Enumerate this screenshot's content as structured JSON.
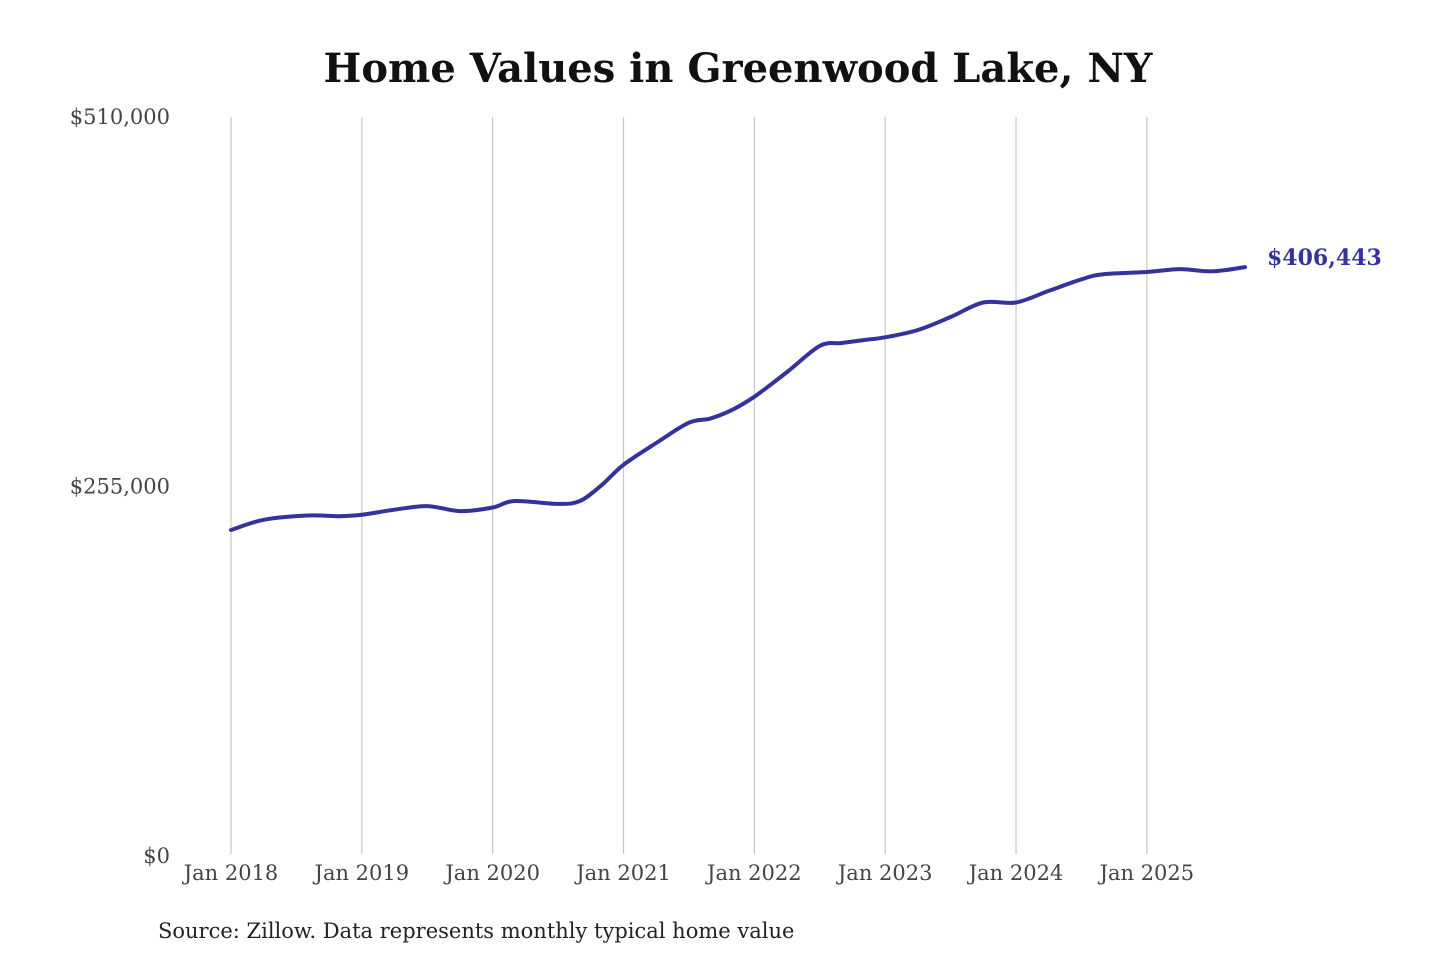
{
  "colors": {
    "series": "#35329b",
    "grid": "#c8c8c8",
    "text": "#444444"
  },
  "chart_data": {
    "type": "line",
    "title": "Home Values in Greenwood Lake, NY",
    "xlabel": "",
    "ylabel": "",
    "grid": "vertical",
    "ylim": [
      0,
      510000
    ],
    "yticks": [
      0,
      255000,
      510000
    ],
    "ytick_labels": [
      "$0",
      "$255,000",
      "$510,000"
    ],
    "xticks": [
      "2018-01",
      "2019-01",
      "2020-01",
      "2021-01",
      "2022-01",
      "2023-01",
      "2024-01",
      "2025-01"
    ],
    "xtick_labels": [
      "Jan 2018",
      "Jan 2019",
      "Jan 2020",
      "Jan 2021",
      "Jan 2022",
      "Jan 2023",
      "Jan 2024",
      "Jan 2025"
    ],
    "xlim": [
      "2018-01",
      "2025-10"
    ],
    "series": [
      {
        "name": "",
        "end_label": "$406,443",
        "points": [
          {
            "x": "2018-01",
            "y": 225000
          },
          {
            "x": "2018-04",
            "y": 232000
          },
          {
            "x": "2018-08",
            "y": 235000
          },
          {
            "x": "2018-11",
            "y": 234500
          },
          {
            "x": "2019-01",
            "y": 235500
          },
          {
            "x": "2019-04",
            "y": 239000
          },
          {
            "x": "2019-07",
            "y": 241500
          },
          {
            "x": "2019-10",
            "y": 238000
          },
          {
            "x": "2020-01",
            "y": 240500
          },
          {
            "x": "2020-03",
            "y": 245000
          },
          {
            "x": "2020-07",
            "y": 243000
          },
          {
            "x": "2020-09",
            "y": 245000
          },
          {
            "x": "2020-11",
            "y": 256000
          },
          {
            "x": "2021-01",
            "y": 270000
          },
          {
            "x": "2021-04",
            "y": 285000
          },
          {
            "x": "2021-07",
            "y": 299000
          },
          {
            "x": "2021-09",
            "y": 302000
          },
          {
            "x": "2021-11",
            "y": 308000
          },
          {
            "x": "2022-01",
            "y": 317000
          },
          {
            "x": "2022-04",
            "y": 334000
          },
          {
            "x": "2022-07",
            "y": 352000
          },
          {
            "x": "2022-09",
            "y": 354000
          },
          {
            "x": "2022-11",
            "y": 356000
          },
          {
            "x": "2023-01",
            "y": 358000
          },
          {
            "x": "2023-04",
            "y": 363000
          },
          {
            "x": "2023-07",
            "y": 372000
          },
          {
            "x": "2023-10",
            "y": 382000
          },
          {
            "x": "2024-01",
            "y": 382000
          },
          {
            "x": "2024-04",
            "y": 390000
          },
          {
            "x": "2024-07",
            "y": 398000
          },
          {
            "x": "2024-09",
            "y": 401500
          },
          {
            "x": "2025-01",
            "y": 403000
          },
          {
            "x": "2025-04",
            "y": 405000
          },
          {
            "x": "2025-07",
            "y": 403500
          },
          {
            "x": "2025-10",
            "y": 406443
          }
        ]
      }
    ],
    "annotations": [
      "Source: Zillow. Data represents monthly typical home value"
    ]
  }
}
